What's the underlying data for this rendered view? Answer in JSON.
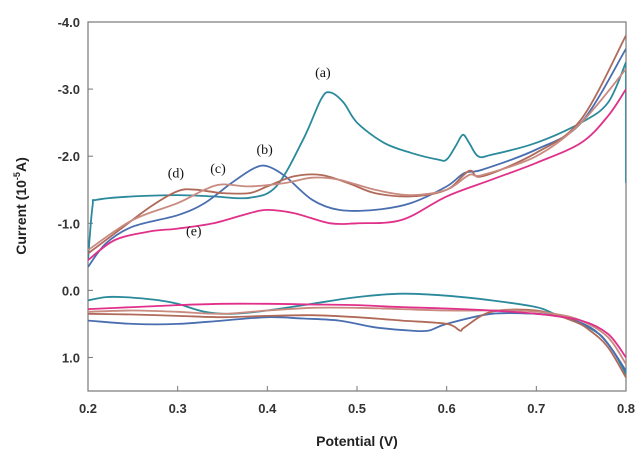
{
  "chart_data": {
    "type": "line",
    "xlabel": "Potential (V)",
    "ylabel_main": "Current (10",
    "ylabel_sup": "-5",
    "ylabel_end": "A)",
    "x_ticks": [
      "0.2",
      "0.3",
      "0.4",
      "0.5",
      "0.6",
      "0.7",
      "0.8"
    ],
    "y_ticks": [
      "-4.0",
      "-3.0",
      "-2.0",
      "-1.0",
      "0.0",
      "1.0"
    ],
    "xlim": [
      0.2,
      0.8
    ],
    "ylim": [
      1.5,
      -4.0
    ],
    "y_axis_inverted": true,
    "grid": false,
    "curve_labels": [
      {
        "text": "(a)",
        "x": 0.462,
        "y": -3.18
      },
      {
        "text": "(b)",
        "x": 0.397,
        "y": -2.03
      },
      {
        "text": "(c)",
        "x": 0.345,
        "y": -1.75
      },
      {
        "text": "(d)",
        "x": 0.298,
        "y": -1.68
      },
      {
        "text": "(e)",
        "x": 0.318,
        "y": -0.82
      }
    ],
    "series": [
      {
        "color": "#2a8a9c",
        "forward": [
          [
            0.2,
            -0.45
          ],
          [
            0.205,
            -1.25
          ],
          [
            0.21,
            -1.35
          ],
          [
            0.25,
            -1.4
          ],
          [
            0.3,
            -1.42
          ],
          [
            0.34,
            -1.4
          ],
          [
            0.38,
            -1.38
          ],
          [
            0.41,
            -1.55
          ],
          [
            0.44,
            -2.25
          ],
          [
            0.46,
            -2.85
          ],
          [
            0.47,
            -2.95
          ],
          [
            0.485,
            -2.8
          ],
          [
            0.5,
            -2.5
          ],
          [
            0.53,
            -2.2
          ],
          [
            0.56,
            -2.05
          ],
          [
            0.59,
            -1.95
          ],
          [
            0.6,
            -1.95
          ],
          [
            0.61,
            -2.15
          ],
          [
            0.618,
            -2.32
          ],
          [
            0.625,
            -2.2
          ],
          [
            0.635,
            -2.0
          ],
          [
            0.65,
            -2.02
          ],
          [
            0.7,
            -2.2
          ],
          [
            0.75,
            -2.5
          ],
          [
            0.78,
            -2.8
          ],
          [
            0.8,
            -3.4
          ]
        ],
        "reverse": [
          [
            0.8,
            1.25
          ],
          [
            0.79,
            1.0
          ],
          [
            0.78,
            0.8
          ],
          [
            0.77,
            0.65
          ],
          [
            0.75,
            0.5
          ],
          [
            0.72,
            0.35
          ],
          [
            0.7,
            0.25
          ],
          [
            0.65,
            0.15
          ],
          [
            0.6,
            0.08
          ],
          [
            0.55,
            0.05
          ],
          [
            0.5,
            0.1
          ],
          [
            0.45,
            0.2
          ],
          [
            0.4,
            0.3
          ],
          [
            0.36,
            0.35
          ],
          [
            0.33,
            0.32
          ],
          [
            0.3,
            0.2
          ],
          [
            0.28,
            0.15
          ],
          [
            0.26,
            0.12
          ],
          [
            0.24,
            0.1
          ],
          [
            0.22,
            0.1
          ],
          [
            0.2,
            0.15
          ]
        ],
        "return": [
          [
            0.8,
            -1.6
          ],
          [
            0.8,
            -3.4
          ]
        ]
      },
      {
        "color": "#4a6fb0",
        "forward": [
          [
            0.2,
            -0.35
          ],
          [
            0.22,
            -0.7
          ],
          [
            0.25,
            -0.95
          ],
          [
            0.3,
            -1.12
          ],
          [
            0.33,
            -1.3
          ],
          [
            0.36,
            -1.6
          ],
          [
            0.385,
            -1.82
          ],
          [
            0.4,
            -1.85
          ],
          [
            0.42,
            -1.7
          ],
          [
            0.45,
            -1.35
          ],
          [
            0.48,
            -1.2
          ],
          [
            0.52,
            -1.2
          ],
          [
            0.56,
            -1.3
          ],
          [
            0.6,
            -1.55
          ],
          [
            0.62,
            -1.75
          ],
          [
            0.64,
            -1.8
          ],
          [
            0.7,
            -2.1
          ],
          [
            0.75,
            -2.5
          ],
          [
            0.8,
            -3.6
          ]
        ],
        "reverse": [
          [
            0.8,
            1.2
          ],
          [
            0.78,
            0.8
          ],
          [
            0.76,
            0.55
          ],
          [
            0.73,
            0.4
          ],
          [
            0.7,
            0.35
          ],
          [
            0.65,
            0.35
          ],
          [
            0.6,
            0.5
          ],
          [
            0.58,
            0.6
          ],
          [
            0.56,
            0.6
          ],
          [
            0.52,
            0.55
          ],
          [
            0.48,
            0.45
          ],
          [
            0.44,
            0.42
          ],
          [
            0.4,
            0.4
          ],
          [
            0.35,
            0.45
          ],
          [
            0.3,
            0.5
          ],
          [
            0.25,
            0.5
          ],
          [
            0.2,
            0.45
          ]
        ]
      },
      {
        "color": "#b06a5a",
        "forward": [
          [
            0.2,
            -0.55
          ],
          [
            0.23,
            -0.85
          ],
          [
            0.27,
            -1.25
          ],
          [
            0.3,
            -1.48
          ],
          [
            0.32,
            -1.5
          ],
          [
            0.35,
            -1.45
          ],
          [
            0.38,
            -1.45
          ],
          [
            0.4,
            -1.55
          ],
          [
            0.43,
            -1.7
          ],
          [
            0.46,
            -1.72
          ],
          [
            0.49,
            -1.6
          ],
          [
            0.52,
            -1.45
          ],
          [
            0.56,
            -1.4
          ],
          [
            0.6,
            -1.5
          ],
          [
            0.625,
            -1.78
          ],
          [
            0.64,
            -1.7
          ],
          [
            0.7,
            -2.05
          ],
          [
            0.75,
            -2.55
          ],
          [
            0.8,
            -3.8
          ]
        ],
        "reverse": [
          [
            0.8,
            1.3
          ],
          [
            0.78,
            0.85
          ],
          [
            0.76,
            0.6
          ],
          [
            0.74,
            0.45
          ],
          [
            0.7,
            0.3
          ],
          [
            0.65,
            0.32
          ],
          [
            0.62,
            0.55
          ],
          [
            0.615,
            0.6
          ],
          [
            0.6,
            0.5
          ],
          [
            0.55,
            0.45
          ],
          [
            0.5,
            0.4
          ],
          [
            0.45,
            0.37
          ],
          [
            0.4,
            0.38
          ],
          [
            0.35,
            0.4
          ],
          [
            0.3,
            0.38
          ],
          [
            0.25,
            0.36
          ],
          [
            0.2,
            0.35
          ]
        ]
      },
      {
        "color": "#c98a80",
        "forward": [
          [
            0.2,
            -0.6
          ],
          [
            0.25,
            -1.05
          ],
          [
            0.3,
            -1.3
          ],
          [
            0.33,
            -1.5
          ],
          [
            0.35,
            -1.58
          ],
          [
            0.38,
            -1.55
          ],
          [
            0.42,
            -1.6
          ],
          [
            0.45,
            -1.68
          ],
          [
            0.48,
            -1.65
          ],
          [
            0.52,
            -1.5
          ],
          [
            0.56,
            -1.42
          ],
          [
            0.6,
            -1.5
          ],
          [
            0.625,
            -1.72
          ],
          [
            0.64,
            -1.72
          ],
          [
            0.7,
            -2.0
          ],
          [
            0.75,
            -2.5
          ],
          [
            0.8,
            -3.3
          ]
        ],
        "reverse": [
          [
            0.8,
            1.1
          ],
          [
            0.78,
            0.7
          ],
          [
            0.75,
            0.45
          ],
          [
            0.72,
            0.35
          ],
          [
            0.68,
            0.3
          ],
          [
            0.64,
            0.3
          ],
          [
            0.6,
            0.3
          ],
          [
            0.55,
            0.28
          ],
          [
            0.5,
            0.26
          ],
          [
            0.45,
            0.26
          ],
          [
            0.4,
            0.3
          ],
          [
            0.35,
            0.35
          ],
          [
            0.3,
            0.32
          ],
          [
            0.25,
            0.3
          ],
          [
            0.2,
            0.32
          ]
        ]
      },
      {
        "color": "#e0308a",
        "forward": [
          [
            0.2,
            -0.45
          ],
          [
            0.23,
            -0.75
          ],
          [
            0.27,
            -0.88
          ],
          [
            0.3,
            -0.92
          ],
          [
            0.34,
            -1.0
          ],
          [
            0.38,
            -1.15
          ],
          [
            0.4,
            -1.2
          ],
          [
            0.43,
            -1.15
          ],
          [
            0.47,
            -1.0
          ],
          [
            0.5,
            -1.0
          ],
          [
            0.55,
            -1.05
          ],
          [
            0.6,
            -1.4
          ],
          [
            0.65,
            -1.65
          ],
          [
            0.7,
            -1.9
          ],
          [
            0.75,
            -2.2
          ],
          [
            0.78,
            -2.6
          ],
          [
            0.8,
            -3.0
          ]
        ],
        "reverse": [
          [
            0.8,
            1.0
          ],
          [
            0.78,
            0.65
          ],
          [
            0.75,
            0.45
          ],
          [
            0.7,
            0.35
          ],
          [
            0.65,
            0.3
          ],
          [
            0.6,
            0.27
          ],
          [
            0.55,
            0.25
          ],
          [
            0.5,
            0.22
          ],
          [
            0.45,
            0.21
          ],
          [
            0.4,
            0.2
          ],
          [
            0.35,
            0.2
          ],
          [
            0.3,
            0.22
          ],
          [
            0.25,
            0.25
          ],
          [
            0.2,
            0.28
          ]
        ]
      }
    ]
  }
}
